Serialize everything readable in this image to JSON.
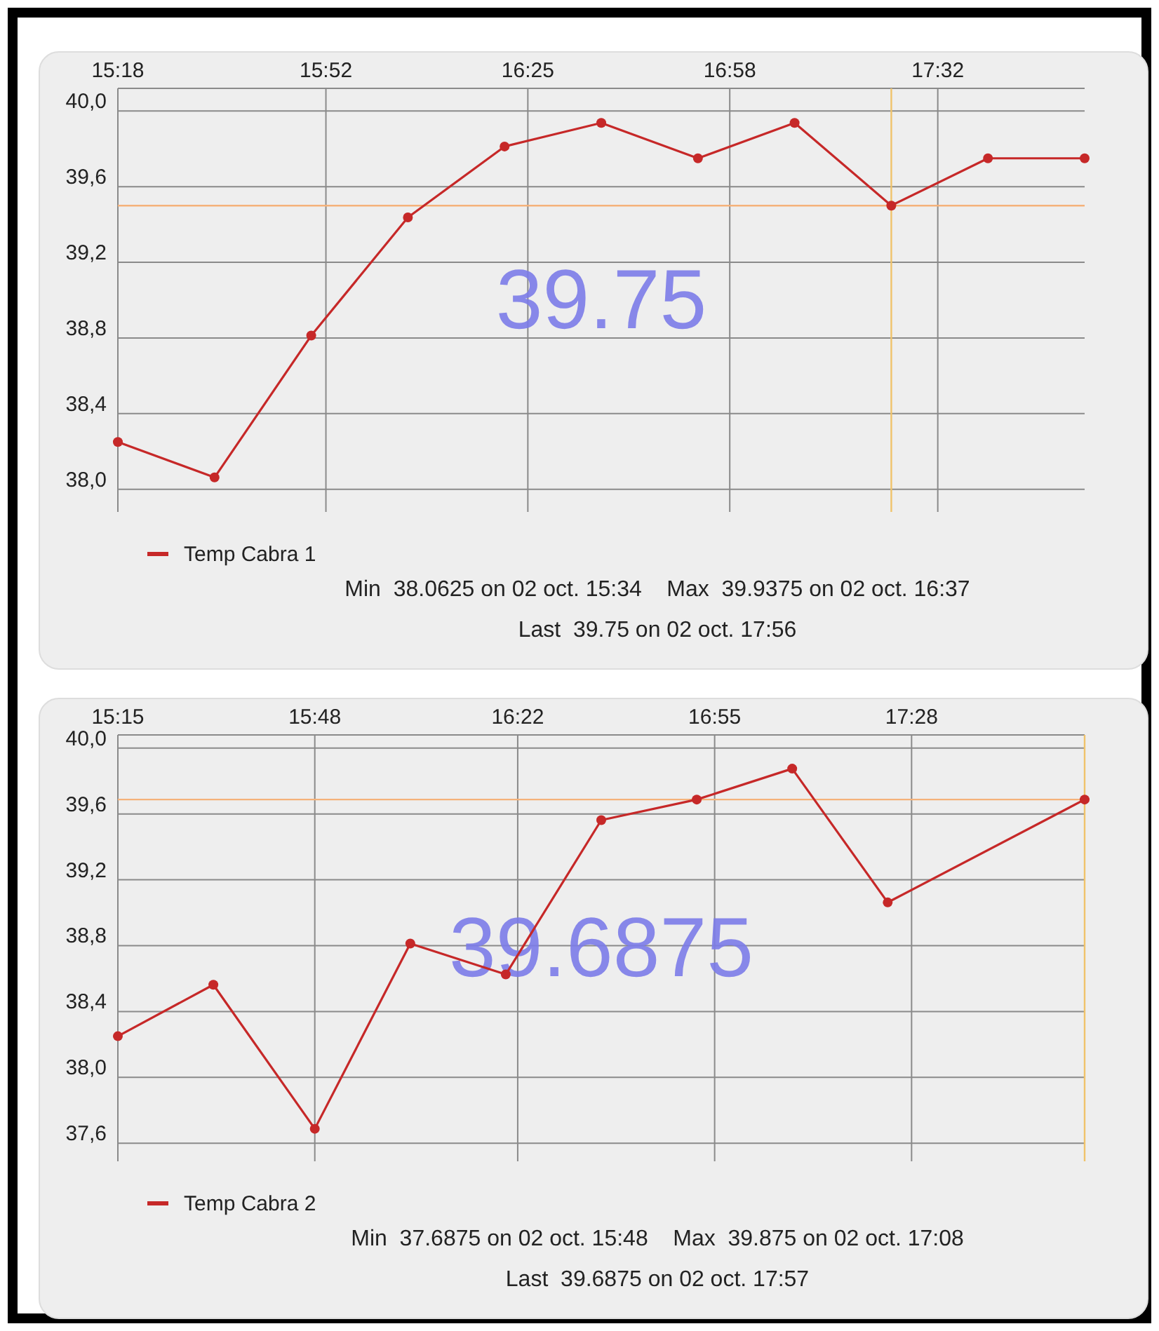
{
  "chart_data": [
    {
      "type": "line",
      "x": [
        15.3,
        15.5633,
        15.8267,
        16.09,
        16.3533,
        16.6167,
        16.88,
        17.1433,
        17.4067,
        17.67,
        17.9333
      ],
      "series": [
        {
          "name": "Temp Cabra 1",
          "color": "#c62828",
          "values": [
            38.25,
            38.0625,
            38.8125,
            39.4375,
            39.8125,
            39.9375,
            39.75,
            39.9375,
            39.5,
            39.75,
            39.75
          ]
        }
      ],
      "xlim": [
        15.3,
        17.9333
      ],
      "xticks": [
        {
          "value": 15.3,
          "label": "15:18"
        },
        {
          "value": 15.8667,
          "label": "15:52"
        },
        {
          "value": 16.4167,
          "label": "16:25"
        },
        {
          "value": 16.9667,
          "label": "16:58"
        },
        {
          "value": 17.5333,
          "label": "17:32"
        }
      ],
      "ylim": [
        37.88,
        40.12
      ],
      "yticks": [
        {
          "value": 38,
          "label": "38,0"
        },
        {
          "value": 38.4,
          "label": "38,4"
        },
        {
          "value": 38.8,
          "label": "38,8"
        },
        {
          "value": 39.2,
          "label": "39,2"
        },
        {
          "value": 39.6,
          "label": "39,6"
        },
        {
          "value": 40,
          "label": "40,0"
        }
      ],
      "ref_lines": [
        {
          "axis": "y",
          "value": 39.5,
          "color": "#f5b27a"
        },
        {
          "axis": "x",
          "value": 17.4067,
          "color": "#f0c36a"
        }
      ],
      "annotations": [
        "39.75",
        "Min  38.0625 on 02 oct. 15:34",
        "Max  39.9375 on 02 oct. 16:37",
        "Last  39.75 on 02 oct. 17:56"
      ],
      "grid": true,
      "legend": "bottom left",
      "marker": "circle",
      "line_style": "solid"
    },
    {
      "type": "line",
      "x": [
        15.25,
        15.5167,
        15.8,
        16.0667,
        16.3333,
        16.6,
        16.8667,
        17.1333,
        17.4,
        17.95
      ],
      "series": [
        {
          "name": "Temp Cabra 2",
          "color": "#c62828",
          "values": [
            38.25,
            38.5625,
            37.6875,
            38.8125,
            38.625,
            39.5625,
            39.6875,
            39.875,
            39.0625,
            39.6875
          ]
        }
      ],
      "xlim": [
        15.25,
        17.95
      ],
      "xticks": [
        {
          "value": 15.25,
          "label": "15:15"
        },
        {
          "value": 15.8,
          "label": "15:48"
        },
        {
          "value": 16.3667,
          "label": "16:22"
        },
        {
          "value": 16.9167,
          "label": "16:55"
        },
        {
          "value": 17.4667,
          "label": "17:28"
        }
      ],
      "ylim": [
        37.49,
        40.08
      ],
      "yticks": [
        {
          "value": 37.6,
          "label": "37,6"
        },
        {
          "value": 38,
          "label": "38,0"
        },
        {
          "value": 38.4,
          "label": "38,4"
        },
        {
          "value": 38.8,
          "label": "38,8"
        },
        {
          "value": 39.2,
          "label": "39,2"
        },
        {
          "value": 39.6,
          "label": "39,6"
        },
        {
          "value": 40,
          "label": "40,0"
        }
      ],
      "ref_lines": [
        {
          "axis": "y",
          "value": 39.6875,
          "color": "#f5b27a"
        },
        {
          "axis": "x",
          "value": 17.95,
          "color": "#f0c36a"
        }
      ],
      "annotations": [
        "39.6875",
        "Min  37.6875 on 02 oct. 15:48",
        "Max  39.875 on 02 oct. 17:08",
        "Last  39.6875 on 02 oct. 17:57"
      ],
      "grid": true,
      "legend": "bottom left",
      "marker": "circle",
      "line_style": "solid"
    }
  ]
}
